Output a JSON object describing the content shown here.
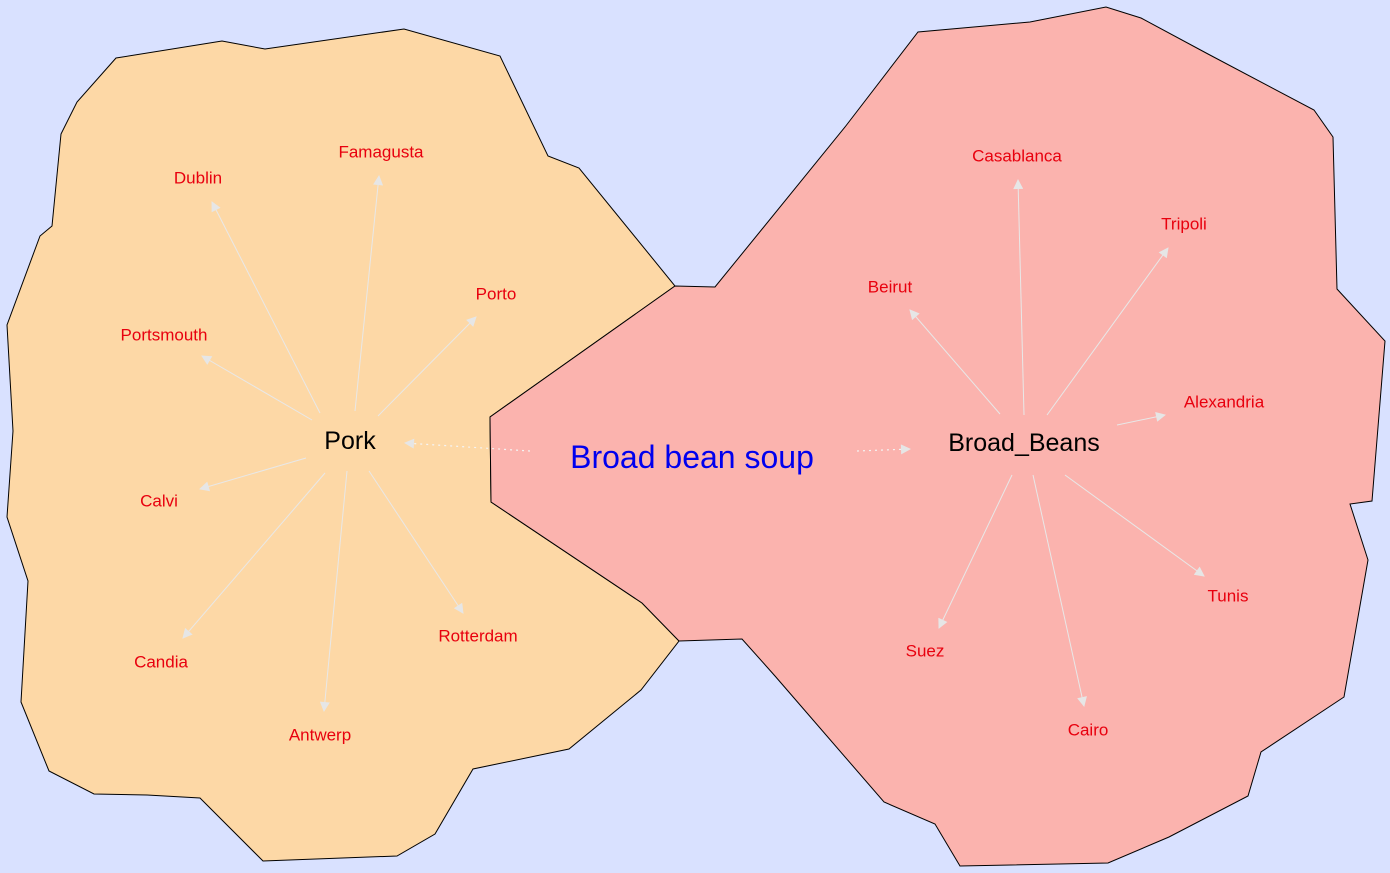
{
  "colors": {
    "background": "#d9e1ff",
    "pork_region": "#fdd8a6",
    "beans_region": "#fbb3ae",
    "leaf_label": "#e8000e",
    "hub_label": "#000000",
    "center_label": "#0000ee"
  },
  "center": {
    "label": "Broad bean soup"
  },
  "clusters": [
    {
      "hub": "Pork",
      "leaves": [
        "Dublin",
        "Famagusta",
        "Porto",
        "Portsmouth",
        "Calvi",
        "Candia",
        "Antwerp",
        "Rotterdam"
      ]
    },
    {
      "hub": "Broad_Beans",
      "leaves": [
        "Casablanca",
        "Tripoli",
        "Beirut",
        "Alexandria",
        "Tunis",
        "Suez",
        "Cairo"
      ]
    }
  ]
}
